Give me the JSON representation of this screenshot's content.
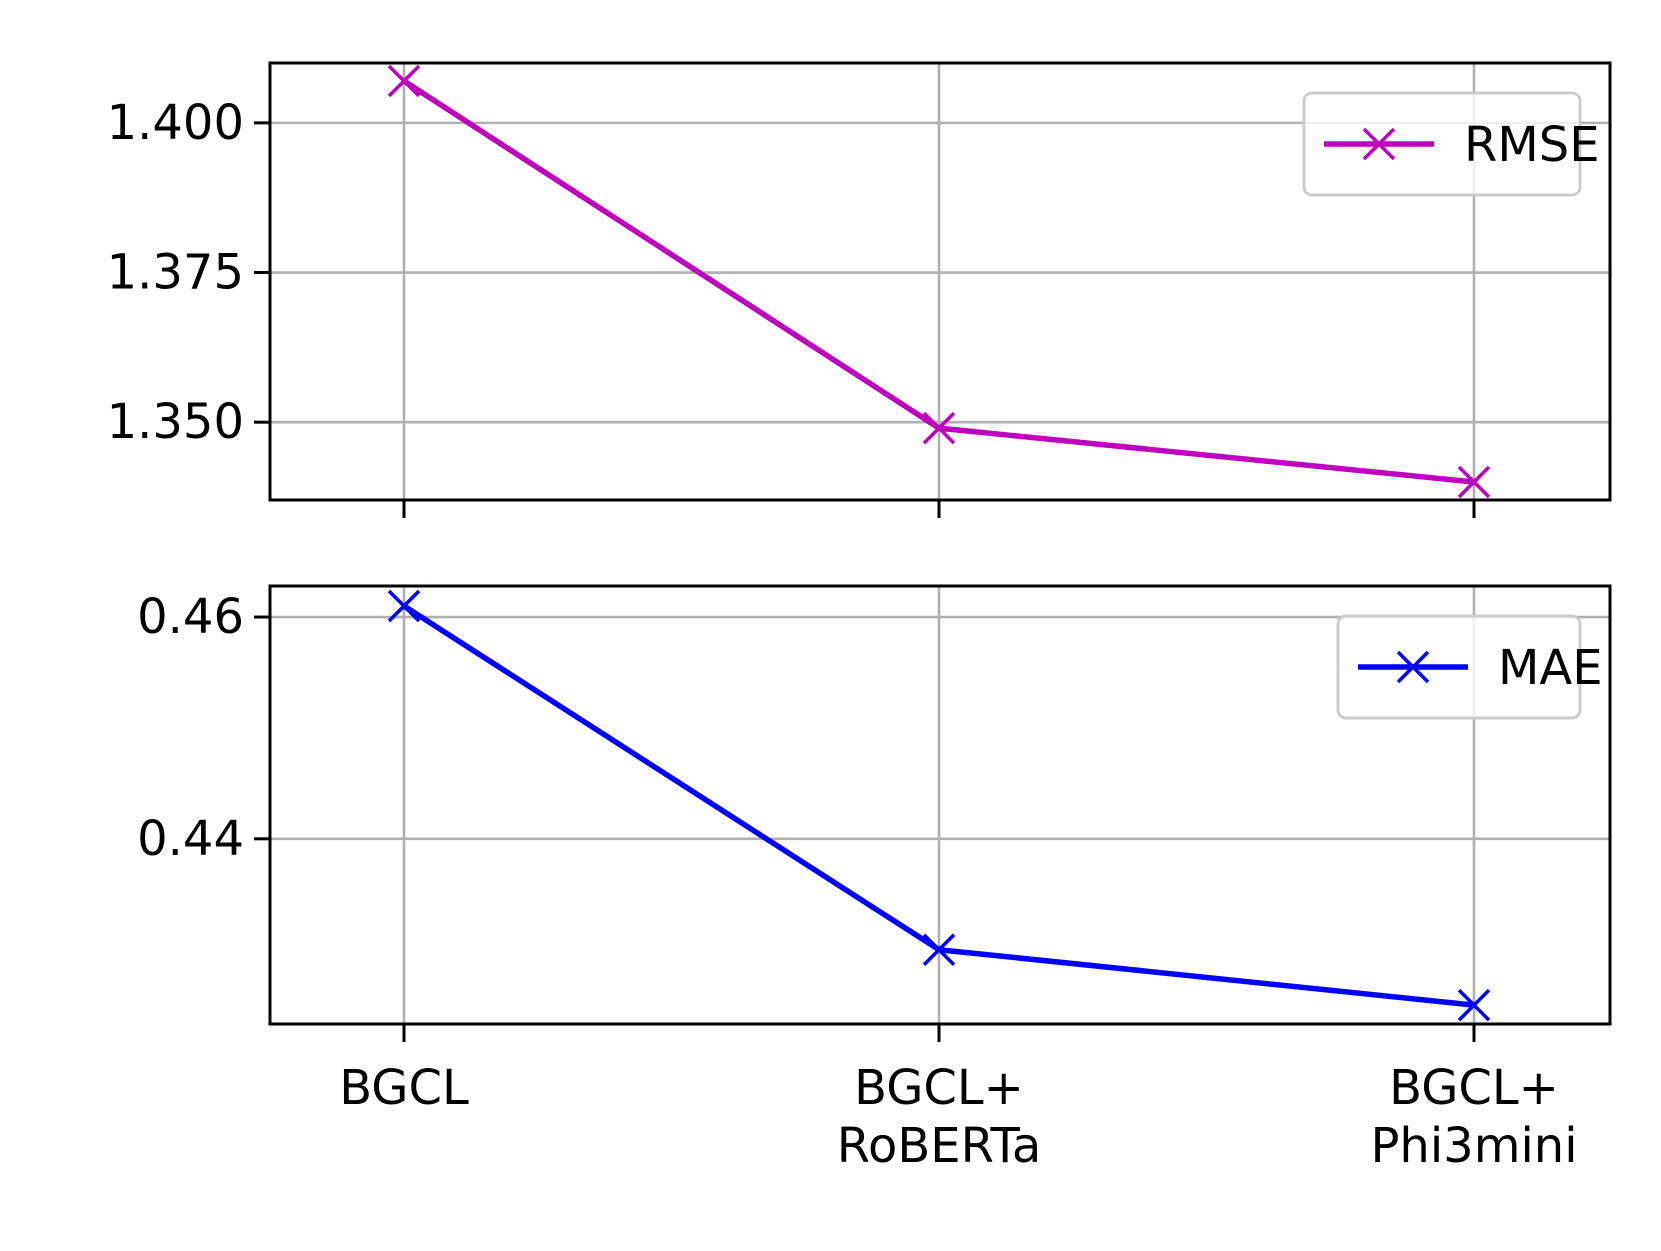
{
  "chart_data": [
    {
      "type": "line",
      "categories": [
        "BGCL",
        "BGCL+\nRoBERTa",
        "BGCL+\nPhi3mini"
      ],
      "series": [
        {
          "name": "RMSE",
          "values": [
            1.407,
            1.349,
            1.34
          ],
          "color": "#bf00bf",
          "marker": "x"
        }
      ],
      "ylim": [
        1.337,
        1.41
      ],
      "yticks": [
        "1.350",
        "1.375",
        "1.400"
      ],
      "ytick_values": [
        1.35,
        1.375,
        1.4
      ],
      "grid": true,
      "legend": "top-right",
      "show_xticklabels": false
    },
    {
      "type": "line",
      "categories": [
        "BGCL",
        "BGCL+\nRoBERTa",
        "BGCL+\nPhi3mini"
      ],
      "series": [
        {
          "name": "MAE",
          "values": [
            0.461,
            0.43,
            0.425
          ],
          "color": "#0000ff",
          "marker": "x"
        }
      ],
      "ylim": [
        0.4233,
        0.4628
      ],
      "yticks": [
        "0.44",
        "0.46"
      ],
      "ytick_values": [
        0.44,
        0.46
      ],
      "grid": true,
      "legend": "top-right",
      "show_xticklabels": true
    }
  ]
}
